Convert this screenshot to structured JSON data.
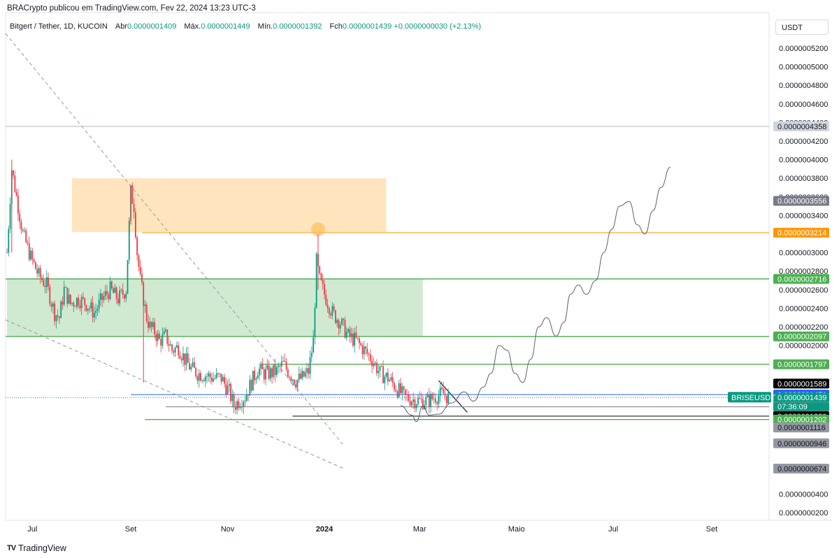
{
  "header": {
    "text": "BRACrypto publicou em TradingView.com, Fev 22, 2024 13:23 UTC-3"
  },
  "legend": {
    "symbol": "Bitgert / Tether, 1D, KUCOIN",
    "open_label": "Abr",
    "open_value": "0.0000001409",
    "high_label": "Máx.",
    "high_value": "0.0000001449",
    "low_label": "Mín.",
    "low_value": "0.0000001392",
    "close_label": "Fch",
    "close_value": "0.0000001439",
    "change": "+0.0000000030 (+2.13%)"
  },
  "currency": "USDT",
  "footer": {
    "brand": "TradingView",
    "logo_glyph": "TV"
  },
  "colors": {
    "up": "#089981",
    "down": "#f23645",
    "green_zone": "#4caf50",
    "orange_zone": "#ff9800",
    "blue_line": "#2962ff",
    "grid": "#e0e3eb"
  },
  "chart_data": {
    "type": "candlestick",
    "symbol": "BRISEUSDT",
    "ylim": [
      1e-08,
      5.4e-07
    ],
    "y_ticks": [
      "0.0000005200",
      "0.0000005000",
      "0.0000004800",
      "0.0000004600",
      "0.0000004400",
      "0.0000004200",
      "0.0000004000",
      "0.0000003800",
      "0.0000003600",
      "0.0000003400",
      "0.0000003000",
      "0.0000002800",
      "0.0000002600",
      "0.0000002400",
      "0.0000002200",
      "0.0000002000",
      "0.0000000400",
      "0.0000000200"
    ],
    "x_ticks": [
      {
        "label": "Jul",
        "day": 16
      },
      {
        "label": "Set",
        "day": 78
      },
      {
        "label": "Nov",
        "day": 139
      },
      {
        "label": "2024",
        "day": 200
      },
      {
        "label": "Mar",
        "day": 260
      },
      {
        "label": "Maio",
        "day": 321
      },
      {
        "label": "Jul",
        "day": 382
      },
      {
        "label": "Set",
        "day": 444
      }
    ],
    "price_path": [
      [
        0,
        3.0
      ],
      [
        3,
        3.9
      ],
      [
        6,
        3.6
      ],
      [
        10,
        3.2
      ],
      [
        15,
        2.95
      ],
      [
        20,
        2.75
      ],
      [
        25,
        2.65
      ],
      [
        30,
        2.35
      ],
      [
        33,
        2.3
      ],
      [
        36,
        2.6
      ],
      [
        40,
        2.45
      ],
      [
        45,
        2.5
      ],
      [
        50,
        2.45
      ],
      [
        55,
        2.35
      ],
      [
        60,
        2.5
      ],
      [
        65,
        2.6
      ],
      [
        70,
        2.5
      ],
      [
        75,
        2.6
      ],
      [
        77,
        3.3
      ],
      [
        78,
        3.65
      ],
      [
        80,
        3.5
      ],
      [
        82,
        3.0
      ],
      [
        84,
        2.7
      ],
      [
        86,
        2.5
      ],
      [
        88,
        2.3
      ],
      [
        90,
        2.2
      ],
      [
        93,
        2.15
      ],
      [
        96,
        2.05
      ],
      [
        100,
        2.1
      ],
      [
        104,
        1.95
      ],
      [
        108,
        1.98
      ],
      [
        112,
        1.85
      ],
      [
        116,
        1.75
      ],
      [
        120,
        1.7
      ],
      [
        125,
        1.68
      ],
      [
        130,
        1.65
      ],
      [
        135,
        1.65
      ],
      [
        140,
        1.5
      ],
      [
        143,
        1.35
      ],
      [
        146,
        1.4
      ],
      [
        150,
        1.45
      ],
      [
        154,
        1.6
      ],
      [
        158,
        1.75
      ],
      [
        162,
        1.7
      ],
      [
        166,
        1.7
      ],
      [
        170,
        1.72
      ],
      [
        174,
        1.8
      ],
      [
        178,
        1.7
      ],
      [
        182,
        1.62
      ],
      [
        186,
        1.65
      ],
      [
        190,
        1.72
      ],
      [
        193,
        2.05
      ],
      [
        195,
        2.9
      ],
      [
        197,
        2.7
      ],
      [
        200,
        2.55
      ],
      [
        205,
        2.35
      ],
      [
        210,
        2.25
      ],
      [
        215,
        2.1
      ],
      [
        220,
        2.05
      ],
      [
        225,
        1.95
      ],
      [
        230,
        1.85
      ],
      [
        235,
        1.7
      ],
      [
        240,
        1.65
      ],
      [
        245,
        1.55
      ],
      [
        250,
        1.45
      ],
      [
        255,
        1.42
      ],
      [
        260,
        1.4
      ],
      [
        265,
        1.4
      ],
      [
        270,
        1.45
      ],
      [
        275,
        1.48
      ],
      [
        278,
        1.44
      ]
    ],
    "wicks": [
      {
        "day": 3,
        "high": 4.0,
        "low": 3.0
      },
      {
        "day": 78,
        "high": 3.72,
        "low": 3.3
      },
      {
        "day": 86,
        "high": 2.6,
        "low": 1.6
      },
      {
        "day": 196,
        "high": 3.2,
        "low": 2.6
      }
    ],
    "levels": [
      {
        "price": "0.0000004358",
        "value": 4.358,
        "color": "#b2b5be",
        "tag_bg": "#d1d4dc",
        "tag_fg": "#131722",
        "line": true
      },
      {
        "price": "0.0000003556",
        "value": 3.556,
        "color": "#787b86",
        "tag_bg": "#787b86",
        "tag_fg": "#ffffff",
        "line": false
      },
      {
        "price": "0.0000003214",
        "value": 3.214,
        "color": "#ff9800",
        "tag_bg": "#ff9800",
        "tag_fg": "#ffffff",
        "line": true
      },
      {
        "price": "0.0000002716",
        "value": 2.716,
        "color": "#4caf50",
        "tag_bg": "#4caf50",
        "tag_fg": "#ffffff",
        "line": true
      },
      {
        "price": "0.0000002097",
        "value": 2.097,
        "color": "#4caf50",
        "tag_bg": "#4caf50",
        "tag_fg": "#ffffff",
        "line": true
      },
      {
        "price": "0.0000001797",
        "value": 1.797,
        "color": "#4caf50",
        "tag_bg": "#4caf50",
        "tag_fg": "#ffffff",
        "line": true
      },
      {
        "price": "0.0000001589",
        "value": 1.589,
        "color": "#000000",
        "tag_bg": "#000000",
        "tag_fg": "#ffffff",
        "line": false
      },
      {
        "price": "0.0000001471",
        "value": 1.471,
        "color": "#2962ff",
        "tag_bg": "#2962ff",
        "tag_fg": "#ffffff",
        "line": true
      },
      {
        "price": "0.0000001439",
        "value": 1.439,
        "color": "#089981",
        "tag_bg": "#089981",
        "tag_fg": "#ffffff",
        "line": false
      },
      {
        "price": "0.0000001339",
        "value": 1.339,
        "color": "#787b86",
        "tag_bg": "#9598a1",
        "tag_fg": "#131722",
        "line": true
      },
      {
        "price": "0.0000001239",
        "value": 1.239,
        "color": "#000000",
        "tag_bg": "#000000",
        "tag_fg": "#ffffff",
        "line": true
      },
      {
        "price": "0.0000001202",
        "value": 1.202,
        "color": "#4caf50",
        "tag_bg": "#4caf50",
        "tag_fg": "#ffffff",
        "line": true
      },
      {
        "price": "0.0000001116",
        "value": 1.116,
        "color": "#9598a1",
        "tag_bg": "#9598a1",
        "tag_fg": "#131722",
        "line": false
      },
      {
        "price": "0.0000000946",
        "value": 0.946,
        "color": "#9598a1",
        "tag_bg": "#9598a1",
        "tag_fg": "#131722",
        "line": false
      },
      {
        "price": "0.0000000674",
        "value": 0.674,
        "color": "#9598a1",
        "tag_bg": "#9598a1",
        "tag_fg": "#131722",
        "line": false
      }
    ],
    "symbol_tag": "BRISEUSDT",
    "countdown": "07:36:09",
    "zones": [
      {
        "color": "#ffe0b2",
        "top": 3.8,
        "bottom": 3.22,
        "start_day": 41,
        "end_day": 239
      },
      {
        "color": "#c8e6c9",
        "top": 2.716,
        "bottom": 2.097,
        "start_day": 0,
        "end_day": 262
      }
    ],
    "projection": [
      [
        248,
        1.35
      ],
      [
        255,
        1.25
      ],
      [
        258,
        1.18
      ],
      [
        262,
        1.35
      ],
      [
        266,
        1.25
      ],
      [
        272,
        1.26
      ],
      [
        280,
        1.38
      ],
      [
        288,
        1.5
      ],
      [
        294,
        1.4
      ],
      [
        300,
        1.55
      ],
      [
        305,
        1.7
      ],
      [
        310,
        2.0
      ],
      [
        315,
        1.95
      ],
      [
        320,
        1.7
      ],
      [
        325,
        1.6
      ],
      [
        330,
        1.85
      ],
      [
        335,
        2.2
      ],
      [
        340,
        2.3
      ],
      [
        346,
        2.1
      ],
      [
        351,
        2.25
      ],
      [
        355,
        2.55
      ],
      [
        360,
        2.65
      ],
      [
        365,
        2.55
      ],
      [
        371,
        2.7
      ],
      [
        376,
        3.0
      ],
      [
        381,
        3.25
      ],
      [
        386,
        3.5
      ],
      [
        392,
        3.55
      ],
      [
        397,
        3.3
      ],
      [
        402,
        3.2
      ],
      [
        407,
        3.45
      ],
      [
        412,
        3.7
      ],
      [
        418,
        3.92
      ]
    ]
  }
}
